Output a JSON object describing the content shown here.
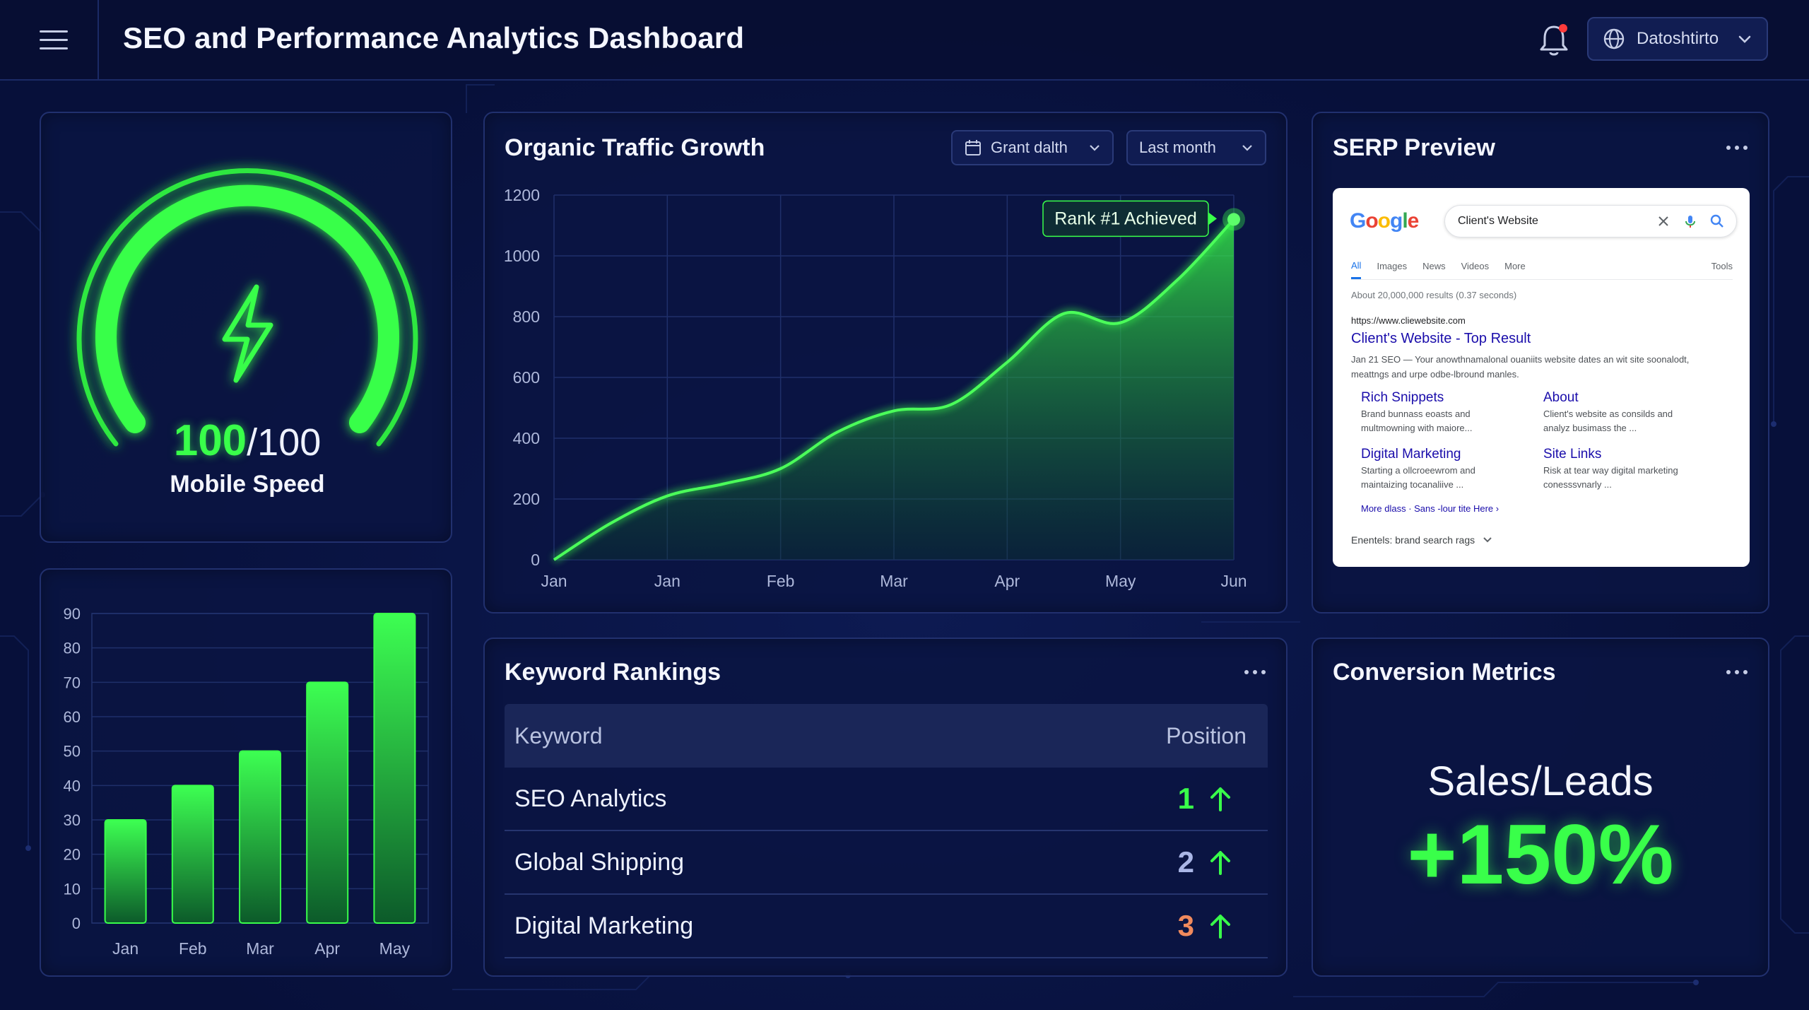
{
  "header": {
    "title": "SEO and Performance Analytics Dashboard",
    "user_label": "Datoshtirto"
  },
  "speed": {
    "score": "100",
    "max": "/100",
    "label": "Mobile Speed",
    "fraction": 1.0
  },
  "monthly_bars": {
    "chart_data": {
      "type": "bar",
      "categories": [
        "Jan",
        "Feb",
        "Mar",
        "Apr",
        "May"
      ],
      "values": [
        30,
        40,
        50,
        70,
        90
      ],
      "ylim": [
        0,
        90
      ],
      "yticks": [
        "0",
        "10",
        "20",
        "30",
        "40",
        "50",
        "60",
        "70",
        "80",
        "90"
      ],
      "title": "",
      "xlabel": "",
      "ylabel": ""
    }
  },
  "traffic": {
    "title": "Organic Traffic Growth",
    "filter_label": "Grant dalth",
    "period_label": "Last month",
    "annotation": "Rank #1 Achieved",
    "chart_data": {
      "type": "area",
      "title": "Organic Traffic Growth",
      "x_labels": [
        "Jan",
        "Jan",
        "Feb",
        "Mar",
        "Apr",
        "May",
        "Jun"
      ],
      "x": [
        0,
        0.5,
        1,
        1.5,
        2,
        2.5,
        3,
        3.5,
        4,
        4.5,
        5,
        5.5,
        6
      ],
      "y": [
        0,
        120,
        210,
        250,
        300,
        420,
        490,
        510,
        650,
        810,
        780,
        920,
        1120
      ],
      "ylim": [
        0,
        1200
      ],
      "yticks": [
        "0",
        "200",
        "400",
        "600",
        "800",
        "1000",
        "1200"
      ],
      "xlabel": "",
      "ylabel": ""
    }
  },
  "serp": {
    "title": "SERP Preview",
    "logo": [
      "G",
      "o",
      "o",
      "g",
      "l",
      "e"
    ],
    "query": "Client's Website",
    "tabs": {
      "all": "All",
      "images": "Images",
      "news": "News",
      "videos": "Videos",
      "more": "More",
      "tools": "Tools"
    },
    "stats": "About 20,000,000 results (0.37 seconds)",
    "url": "https://www.cliewebsite.com",
    "result_title": "Client's Website - Top Result",
    "snippet": "Jan 21 SEO — Your anowthnamalonal ouaniits website dates an wit site soonalodt, meattngs and urpe odbe-lbround manles.",
    "sitelinks": [
      {
        "title": "Rich Snippets",
        "desc": "Brand bunnass eoasts and multmowning with maiore..."
      },
      {
        "title": "About",
        "desc": "Client's website as consilds and analyz busimass the ..."
      },
      {
        "title": "Digital Marketing",
        "desc": "Starting a ollcroeewrom and maintaizing tocanaliive ..."
      },
      {
        "title": "Site Links",
        "desc": "Risk at tear way digital marketing conesssvnarly ..."
      }
    ],
    "more_link": "More dlass · Sans -lour tite Here ›",
    "footer": "Enentels: brand search rags"
  },
  "keywords": {
    "title": "Keyword Rankings",
    "col_keyword": "Keyword",
    "col_position": "Position",
    "rows": [
      {
        "keyword": "SEO Analytics",
        "position": "1",
        "color": "#39ff4a"
      },
      {
        "keyword": "Global Shipping",
        "position": "2",
        "color": "#aab6e6"
      },
      {
        "keyword": "Digital Marketing",
        "position": "3",
        "color": "#f08a5d"
      }
    ]
  },
  "conversion": {
    "title": "Conversion Metrics",
    "label": "Sales/Leads",
    "value": "+150%"
  },
  "colors": {
    "accent": "#39ff4a",
    "background": "#07103a",
    "card": "#0a1442"
  }
}
